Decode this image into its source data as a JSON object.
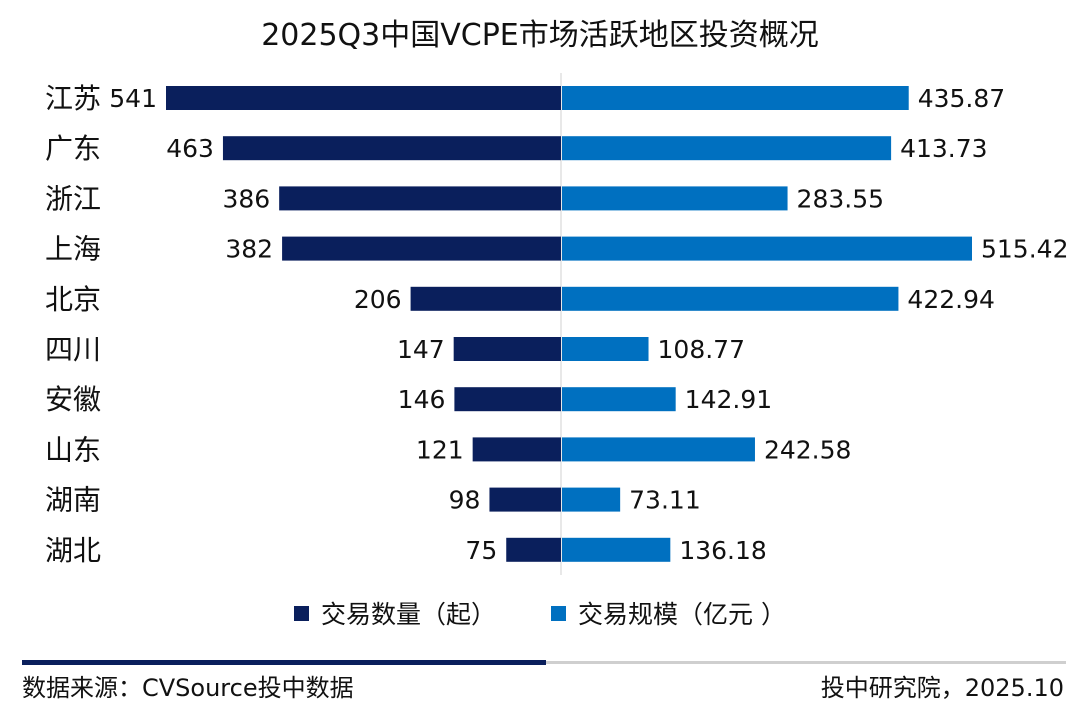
{
  "chart_data": {
    "type": "bar",
    "orientation": "horizontal-diverging",
    "title": "2025Q3中国VCPE市场活跃地区投资概况",
    "categories": [
      "江苏",
      "广东",
      "浙江",
      "上海",
      "北京",
      "四川",
      "安徽",
      "山东",
      "湖南",
      "湖北"
    ],
    "series": [
      {
        "name": "交易数量（起）",
        "values": [
          541,
          463,
          386,
          382,
          206,
          147,
          146,
          121,
          98,
          75
        ],
        "color": "#0a1f5c",
        "side": "left"
      },
      {
        "name": "交易规模（亿元 ）",
        "values": [
          435.87,
          413.73,
          283.55,
          515.42,
          422.94,
          108.77,
          142.91,
          242.58,
          73.11,
          136.18
        ],
        "color": "#0070c0",
        "side": "right"
      }
    ],
    "value_labels": {
      "left": [
        "541",
        "463",
        "386",
        "382",
        "206",
        "147",
        "146",
        "121",
        "98",
        "75"
      ],
      "right": [
        "435.87",
        "413.73",
        "283.55",
        "515.42",
        "422.94",
        "108.77",
        "142.91",
        "242.58",
        "73.11",
        "136.18"
      ]
    },
    "legend_position": "bottom"
  },
  "footer": {
    "source": "数据来源：CVSource投中数据",
    "credit": "投中研究院，2025.10"
  }
}
